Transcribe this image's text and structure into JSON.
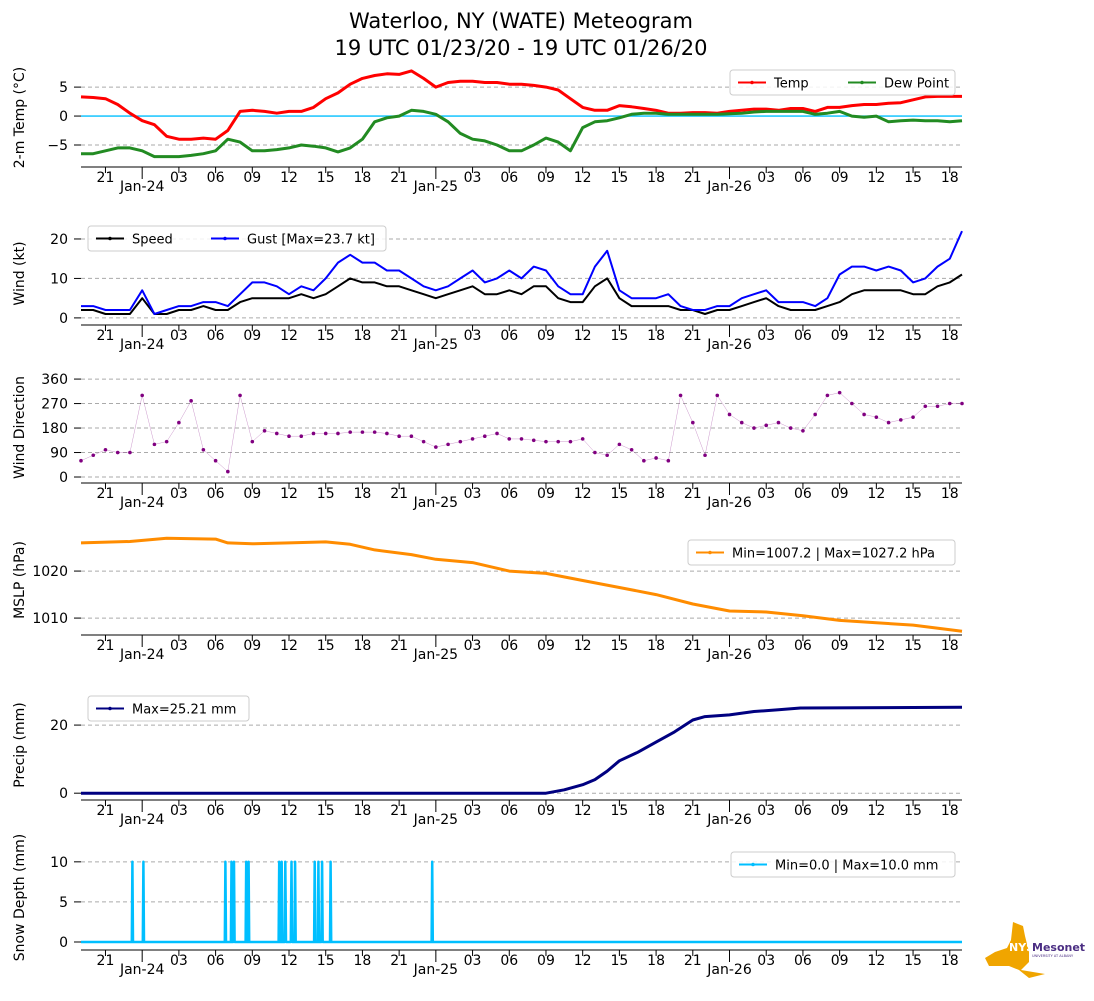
{
  "title": [
    "Waterloo, NY (WATE) Meteogram",
    "19 UTC 01/23/20 - 19 UTC 01/26/20"
  ],
  "logo": {
    "text": "NYS Mesonet",
    "subtext": "UNIVERSITY AT ALBANY",
    "color_state": "#f0a500",
    "color_text": "#4b2e83"
  },
  "x_axis": {
    "unit": "hours since 19 UTC 01/23/20",
    "xlim": [
      0,
      72
    ],
    "ticks": [
      {
        "h": 2,
        "label": "21"
      },
      {
        "h": 5,
        "label": "Jan-24",
        "date": true
      },
      {
        "h": 8,
        "label": "03"
      },
      {
        "h": 11,
        "label": "06"
      },
      {
        "h": 14,
        "label": "09"
      },
      {
        "h": 17,
        "label": "12"
      },
      {
        "h": 20,
        "label": "15"
      },
      {
        "h": 23,
        "label": "18"
      },
      {
        "h": 26,
        "label": "21"
      },
      {
        "h": 29,
        "label": "Jan-25",
        "date": true
      },
      {
        "h": 32,
        "label": "03"
      },
      {
        "h": 35,
        "label": "06"
      },
      {
        "h": 38,
        "label": "09"
      },
      {
        "h": 41,
        "label": "12"
      },
      {
        "h": 44,
        "label": "15"
      },
      {
        "h": 47,
        "label": "18"
      },
      {
        "h": 50,
        "label": "21"
      },
      {
        "h": 53,
        "label": "Jan-26",
        "date": true
      },
      {
        "h": 56,
        "label": "03"
      },
      {
        "h": 59,
        "label": "06"
      },
      {
        "h": 62,
        "label": "09"
      },
      {
        "h": 65,
        "label": "12"
      },
      {
        "h": 68,
        "label": "15"
      },
      {
        "h": 71,
        "label": "18"
      }
    ]
  },
  "chart_data": [
    {
      "type": "line",
      "id": "temp",
      "ylabel": "2-m Temp ( $^\\circ$C)",
      "ylabel_text": "2-m Temp (°C)",
      "ylim": [
        -8.8,
        8.3
      ],
      "yticks": [
        -5,
        0,
        5
      ],
      "ytick_labels": [
        "−5",
        "0",
        "5"
      ],
      "zero_line": "#00bfff",
      "legend": {
        "placement": "top-right",
        "ncol": 2
      },
      "series": [
        {
          "name": "Temp",
          "color": "#ff0000",
          "values": [
            3.3,
            3.2,
            3.0,
            2.0,
            0.5,
            -0.8,
            -1.5,
            -3.5,
            -4.0,
            -4.0,
            -3.8,
            -4.0,
            -2.5,
            0.8,
            1.0,
            0.8,
            0.5,
            0.8,
            0.8,
            1.5,
            3.0,
            4.0,
            5.5,
            6.5,
            7.0,
            7.3,
            7.2,
            7.8,
            6.5,
            5.0,
            5.8,
            6.0,
            6.0,
            5.8,
            5.8,
            5.5,
            5.5,
            5.3,
            5.0,
            4.5,
            3.0,
            1.5,
            1.0,
            1.0,
            1.8,
            1.6,
            1.3,
            1.0,
            0.5,
            0.5,
            0.6,
            0.6,
            0.5,
            0.8,
            1.0,
            1.2,
            1.2,
            1.0,
            1.3,
            1.3,
            0.8,
            1.5,
            1.5,
            1.8,
            2.0,
            2.0,
            2.2,
            2.3,
            2.8,
            3.3,
            3.4,
            3.4,
            3.4
          ]
        },
        {
          "name": "Dew Point",
          "color": "#228b22",
          "values": [
            -6.5,
            -6.5,
            -6.0,
            -5.5,
            -5.5,
            -6.0,
            -7.0,
            -7.0,
            -7.0,
            -6.8,
            -6.5,
            -6.0,
            -4.0,
            -4.5,
            -6.0,
            -6.0,
            -5.8,
            -5.5,
            -5.0,
            -5.2,
            -5.5,
            -6.2,
            -5.5,
            -4.0,
            -1.0,
            -0.3,
            0.0,
            1.0,
            0.8,
            0.3,
            -1.0,
            -3.0,
            -4.0,
            -4.3,
            -5.0,
            -6.0,
            -6.0,
            -5.0,
            -3.8,
            -4.5,
            -6.0,
            -2.0,
            -1.0,
            -0.8,
            -0.3,
            0.3,
            0.5,
            0.5,
            0.3,
            0.3,
            0.3,
            0.3,
            0.3,
            0.4,
            0.5,
            0.7,
            0.8,
            0.8,
            0.8,
            0.8,
            0.3,
            0.5,
            0.8,
            0.0,
            -0.2,
            0.0,
            -1.0,
            -0.8,
            -0.7,
            -0.8,
            -0.8,
            -1.0,
            -0.8
          ]
        }
      ]
    },
    {
      "type": "line",
      "id": "wind",
      "ylabel_text": "Wind (kt)",
      "ylim": [
        -1.8,
        24.3
      ],
      "yticks": [
        0,
        10,
        20
      ],
      "ytick_labels": [
        "0",
        "10",
        "20"
      ],
      "legend": {
        "placement": "top-left",
        "ncol": 2
      },
      "series": [
        {
          "name": "Speed",
          "color": "#000000",
          "values": [
            2,
            2,
            1,
            1,
            1,
            5,
            1,
            1,
            2,
            2,
            3,
            2,
            2,
            4,
            5,
            5,
            5,
            5,
            6,
            5,
            6,
            8,
            10,
            9,
            9,
            8,
            8,
            7,
            6,
            5,
            6,
            7,
            8,
            6,
            6,
            7,
            6,
            8,
            8,
            5,
            4,
            4,
            8,
            10,
            5,
            3,
            3,
            3,
            3,
            2,
            2,
            1,
            2,
            2,
            3,
            4,
            5,
            3,
            2,
            2,
            2,
            3,
            4,
            6,
            7,
            7,
            7,
            7,
            6,
            6,
            8,
            9,
            11
          ]
        },
        {
          "name": "Gust [Max=23.7 kt]",
          "color": "#0000ff",
          "values": [
            3,
            3,
            2,
            2,
            2,
            7,
            1,
            2,
            3,
            3,
            4,
            4,
            3,
            6,
            9,
            9,
            8,
            6,
            8,
            7,
            10,
            14,
            16,
            14,
            14,
            12,
            12,
            10,
            8,
            7,
            8,
            10,
            12,
            9,
            10,
            12,
            10,
            13,
            12,
            8,
            6,
            6,
            13,
            17,
            7,
            5,
            5,
            5,
            6,
            3,
            2,
            2,
            3,
            3,
            5,
            6,
            7,
            4,
            4,
            4,
            3,
            5,
            11,
            13,
            13,
            12,
            13,
            12,
            9,
            10,
            13,
            15,
            22
          ]
        }
      ]
    },
    {
      "type": "scatter",
      "id": "wdir",
      "ylabel_text": "Wind Direction",
      "ylim": [
        -22,
        386
      ],
      "yticks": [
        0,
        90,
        180,
        270,
        360
      ],
      "ytick_labels": [
        "0",
        "90",
        "180",
        "270",
        "360"
      ],
      "series": [
        {
          "name": "Direction",
          "color": "#800080",
          "values": [
            60,
            80,
            100,
            90,
            90,
            300,
            120,
            130,
            200,
            280,
            100,
            60,
            20,
            300,
            130,
            170,
            160,
            150,
            150,
            160,
            160,
            160,
            165,
            165,
            165,
            160,
            150,
            150,
            130,
            110,
            120,
            130,
            140,
            150,
            160,
            140,
            140,
            135,
            130,
            130,
            130,
            140,
            90,
            80,
            120,
            100,
            60,
            70,
            60,
            300,
            200,
            80,
            300,
            230,
            200,
            180,
            190,
            200,
            180,
            170,
            230,
            300,
            310,
            270,
            230,
            220,
            200,
            210,
            220,
            260,
            260,
            270,
            270
          ]
        }
      ]
    },
    {
      "type": "line",
      "id": "mslp",
      "ylabel_text": "MSLP (hPa)",
      "ylim": [
        1006.4,
        1029.8
      ],
      "yticks": [
        1010,
        1020
      ],
      "ytick_labels": [
        "1010",
        "1020"
      ],
      "legend": {
        "placement": "top-right",
        "ncol": 1
      },
      "series": [
        {
          "name": "Min=1007.2 | Max=1027.2 hPa",
          "color": "#ff8c00",
          "points": [
            [
              0,
              1026
            ],
            [
              4,
              1026.3
            ],
            [
              7,
              1027
            ],
            [
              11,
              1026.8
            ],
            [
              12,
              1026
            ],
            [
              14,
              1025.8
            ],
            [
              17,
              1026
            ],
            [
              20,
              1026.2
            ],
            [
              22,
              1025.7
            ],
            [
              24,
              1024.5
            ],
            [
              27,
              1023.5
            ],
            [
              29,
              1022.5
            ],
            [
              32,
              1021.8
            ],
            [
              35,
              1020
            ],
            [
              38,
              1019.5
            ],
            [
              41,
              1018
            ],
            [
              44,
              1016.5
            ],
            [
              47,
              1015
            ],
            [
              50,
              1013
            ],
            [
              53,
              1011.5
            ],
            [
              56,
              1011.3
            ],
            [
              59,
              1010.5
            ],
            [
              62,
              1009.5
            ],
            [
              65,
              1009
            ],
            [
              68,
              1008.5
            ],
            [
              72,
              1007.2
            ]
          ]
        }
      ]
    },
    {
      "type": "line",
      "id": "precip",
      "ylabel_text": "Precip (mm)",
      "ylim": [
        -2,
        30.3
      ],
      "yticks": [
        0,
        20
      ],
      "ytick_labels": [
        "0",
        "20"
      ],
      "legend": {
        "placement": "top-left",
        "ncol": 1
      },
      "series": [
        {
          "name": "Max=25.21 mm",
          "color": "#000080",
          "points": [
            [
              0,
              0
            ],
            [
              38,
              0
            ],
            [
              39.5,
              1
            ],
            [
              41,
              2.5
            ],
            [
              42,
              4
            ],
            [
              43,
              6.5
            ],
            [
              44,
              9.5
            ],
            [
              45.5,
              12
            ],
            [
              47,
              15
            ],
            [
              48.5,
              18
            ],
            [
              50,
              21.5
            ],
            [
              51,
              22.5
            ],
            [
              53,
              23
            ],
            [
              55,
              24
            ],
            [
              57,
              24.5
            ],
            [
              58.8,
              25
            ],
            [
              72,
              25.21
            ]
          ]
        }
      ]
    },
    {
      "type": "line",
      "id": "snow",
      "ylabel_text": "Snow Depth (mm)",
      "ylim": [
        -1,
        12.1
      ],
      "yticks": [
        0,
        5,
        10
      ],
      "ytick_labels": [
        "0",
        "5",
        "10"
      ],
      "legend": {
        "placement": "top-right",
        "ncol": 1
      },
      "series": [
        {
          "name": "Min=0.0 | Max=10.0 mm",
          "color": "#00bfff",
          "spikes_hours": [
            4.2,
            5.1,
            11.8,
            12.3,
            12.5,
            13.5,
            13.7,
            16.2,
            16.4,
            16.7,
            17.2,
            17.5,
            19.1,
            19.4,
            19.7,
            20.4,
            28.7
          ],
          "spike_value": 10,
          "base_value": 0
        }
      ]
    }
  ]
}
